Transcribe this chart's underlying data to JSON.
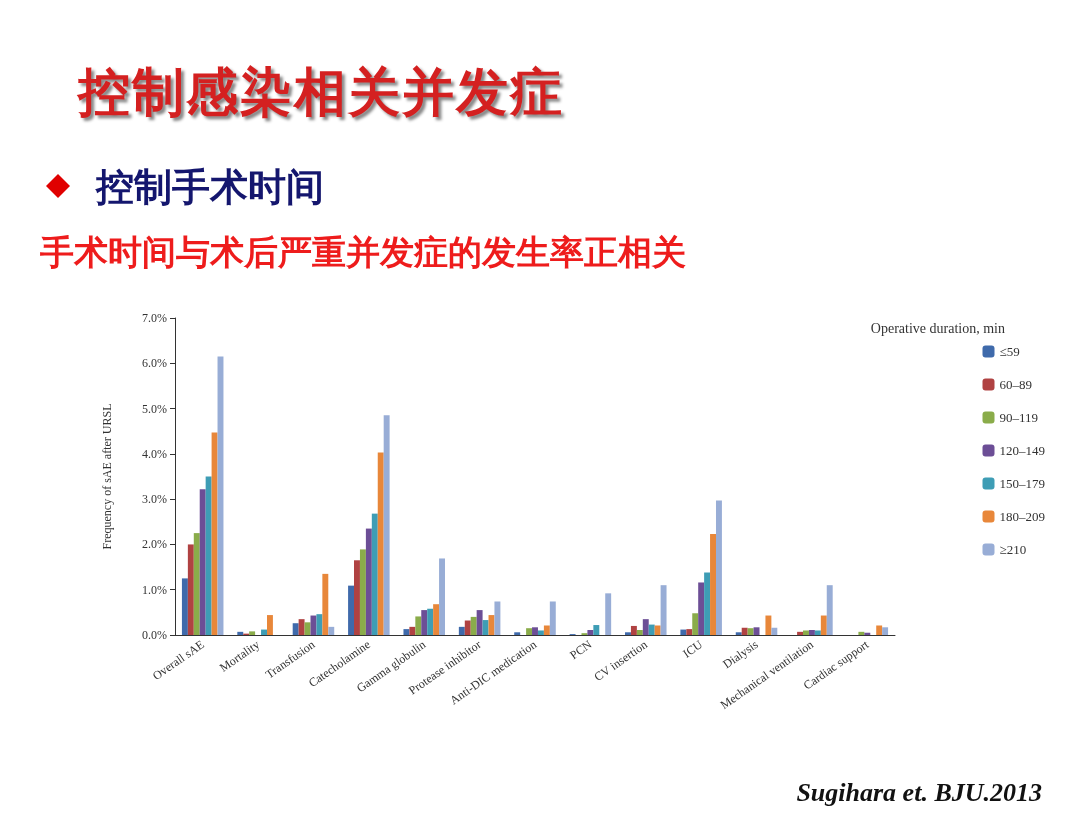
{
  "chart_data": {
    "type": "bar",
    "title": "控制感染相关并发症",
    "subtitle": "控制手术时间",
    "annotations": [
      "手术时间与术后严重并发症的发生率正相关",
      "Sugihara et. BJU.2013"
    ],
    "ylabel": "Frequency of sAE after URSL",
    "legend_title": "Operative duration, min",
    "legend": "right",
    "grid": false,
    "categories": [
      "Overall sAE",
      "Mortality",
      "Transfusion",
      "Catecholamine",
      "Gamma globulin",
      "Protease inhibitor",
      "Anti-DIC medication",
      "PCN",
      "CV insertion",
      "ICU",
      "Dialysis",
      "Mechanical ventilation",
      "Cardiac support"
    ],
    "ylim": [
      0,
      7
    ],
    "yticks": [
      {
        "value": 0,
        "label": "0.0%"
      },
      {
        "value": 1,
        "label": "1.0%"
      },
      {
        "value": 2,
        "label": "2.0%"
      },
      {
        "value": 3,
        "label": "3.0%"
      },
      {
        "value": 4,
        "label": "4.0%"
      },
      {
        "value": 5,
        "label": "5.0%"
      },
      {
        "value": 6,
        "label": "6.0%"
      },
      {
        "value": 7,
        "label": "7.0%"
      }
    ],
    "series": [
      {
        "name": "≤59",
        "color": "#3f6aab",
        "values": [
          1.25,
          0.07,
          0.26,
          1.09,
          0.13,
          0.18,
          0.06,
          0.02,
          0.06,
          0.12,
          0.06,
          0,
          0
        ]
      },
      {
        "name": "60–89",
        "color": "#b04242",
        "values": [
          2.0,
          0.03,
          0.35,
          1.65,
          0.18,
          0.32,
          0,
          0,
          0.2,
          0.13,
          0.16,
          0.07,
          0
        ]
      },
      {
        "name": "90–119",
        "color": "#8aac4a",
        "values": [
          2.25,
          0.08,
          0.28,
          1.89,
          0.41,
          0.4,
          0.15,
          0.04,
          0.11,
          0.48,
          0.15,
          0.1,
          0.07
        ]
      },
      {
        "name": "120–149",
        "color": "#6c4e96",
        "values": [
          3.22,
          0,
          0.43,
          2.35,
          0.55,
          0.55,
          0.17,
          0.11,
          0.35,
          1.16,
          0.17,
          0.11,
          0.05
        ]
      },
      {
        "name": "150–179",
        "color": "#3e9db5",
        "values": [
          3.5,
          0.12,
          0.46,
          2.68,
          0.58,
          0.33,
          0.1,
          0.22,
          0.23,
          1.38,
          0,
          0.1,
          0
        ]
      },
      {
        "name": "180–209",
        "color": "#e8873a",
        "values": [
          4.47,
          0.44,
          1.35,
          4.03,
          0.68,
          0.44,
          0.21,
          0,
          0.21,
          2.23,
          0.43,
          0.43,
          0.21
        ]
      },
      {
        "name": "≥210",
        "color": "#98add6",
        "values": [
          6.15,
          0,
          0.18,
          4.85,
          1.69,
          0.74,
          0.74,
          0.92,
          1.1,
          2.97,
          0.16,
          1.1,
          0.17
        ]
      }
    ]
  }
}
